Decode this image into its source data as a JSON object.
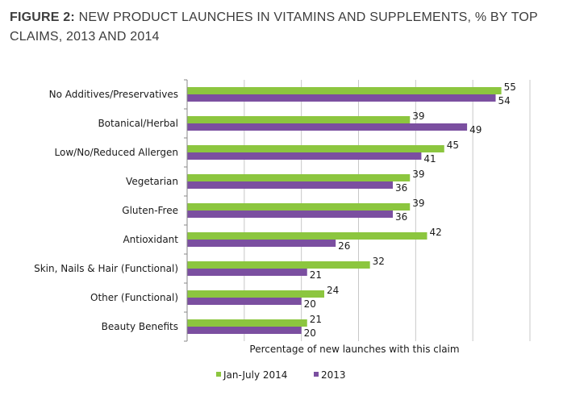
{
  "title": {
    "prefix": "FIGURE 2:",
    "text": " NEW PRODUCT LAUNCHES IN VITAMINS AND SUPPLEMENTS, % BY TOP CLAIMS, 2013 AND 2014"
  },
  "colors": {
    "series1": "#8cc63f",
    "series2": "#7b4fa0",
    "grid": "#c8c8c8",
    "axis": "#8a8a8a"
  },
  "chart_data": {
    "type": "bar",
    "orientation": "horizontal",
    "categories": [
      "No Additives/Preservatives",
      "Botanical/Herbal",
      "Low/No/Reduced Allergen",
      "Vegetarian",
      "Gluten-Free",
      "Antioxidant",
      "Skin, Nails & Hair (Functional)",
      "Other (Functional)",
      "Beauty Benefits"
    ],
    "series": [
      {
        "name": "Jan-July 2014",
        "color": "#8cc63f",
        "values": [
          55,
          39,
          45,
          39,
          39,
          42,
          32,
          24,
          21
        ]
      },
      {
        "name": "2013",
        "color": "#7b4fa0",
        "values": [
          54,
          49,
          41,
          36,
          36,
          26,
          21,
          20,
          20
        ]
      }
    ],
    "xlabel": "Percentage of new launches with this claim",
    "xlim": [
      0,
      60
    ],
    "grid": true,
    "gridlines": [
      10,
      20,
      30,
      40,
      50,
      60
    ],
    "legend_position": "bottom"
  }
}
